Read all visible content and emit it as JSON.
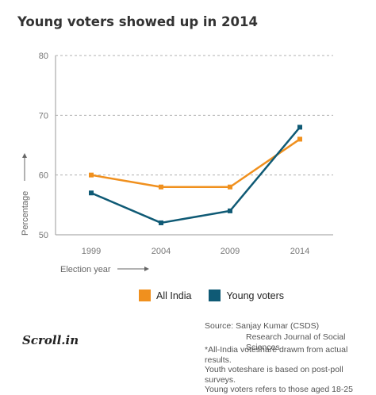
{
  "title": "Young voters showed up in 2014",
  "chart_data": {
    "type": "line",
    "categories": [
      "1999",
      "2004",
      "2009",
      "2014"
    ],
    "x": [
      1999,
      2004,
      2009,
      2014
    ],
    "series": [
      {
        "name": "All India",
        "values": [
          60,
          58,
          58,
          66
        ],
        "color": "#f0901e"
      },
      {
        "name": "Young voters",
        "values": [
          57,
          52,
          54,
          68
        ],
        "color": "#0f5a75"
      }
    ],
    "ylabel": "Percentage",
    "xlabel": "Election year",
    "ylim": [
      50,
      80
    ],
    "yticks": [
      50,
      60,
      70,
      80
    ],
    "grid": true,
    "legend_position": "bottom"
  },
  "legend": {
    "all_india": "All India",
    "young_voters": "Young voters"
  },
  "logo": "Scroll.in",
  "source": {
    "line1": "Source: Sanjay Kumar (CSDS)",
    "line2": "Research Journal of Social Sciences"
  },
  "notes": {
    "line1": "*All-India voteshare drawm from actual results.",
    "line2": "Youth voteshare is based on post-poll surveys.",
    "line3": "Young voters refers to those aged 18-25"
  },
  "colors": {
    "all_india": "#f0901e",
    "young_voters": "#0f5a75",
    "axis": "#9a9a9a",
    "grid": "#b0b0b0"
  }
}
